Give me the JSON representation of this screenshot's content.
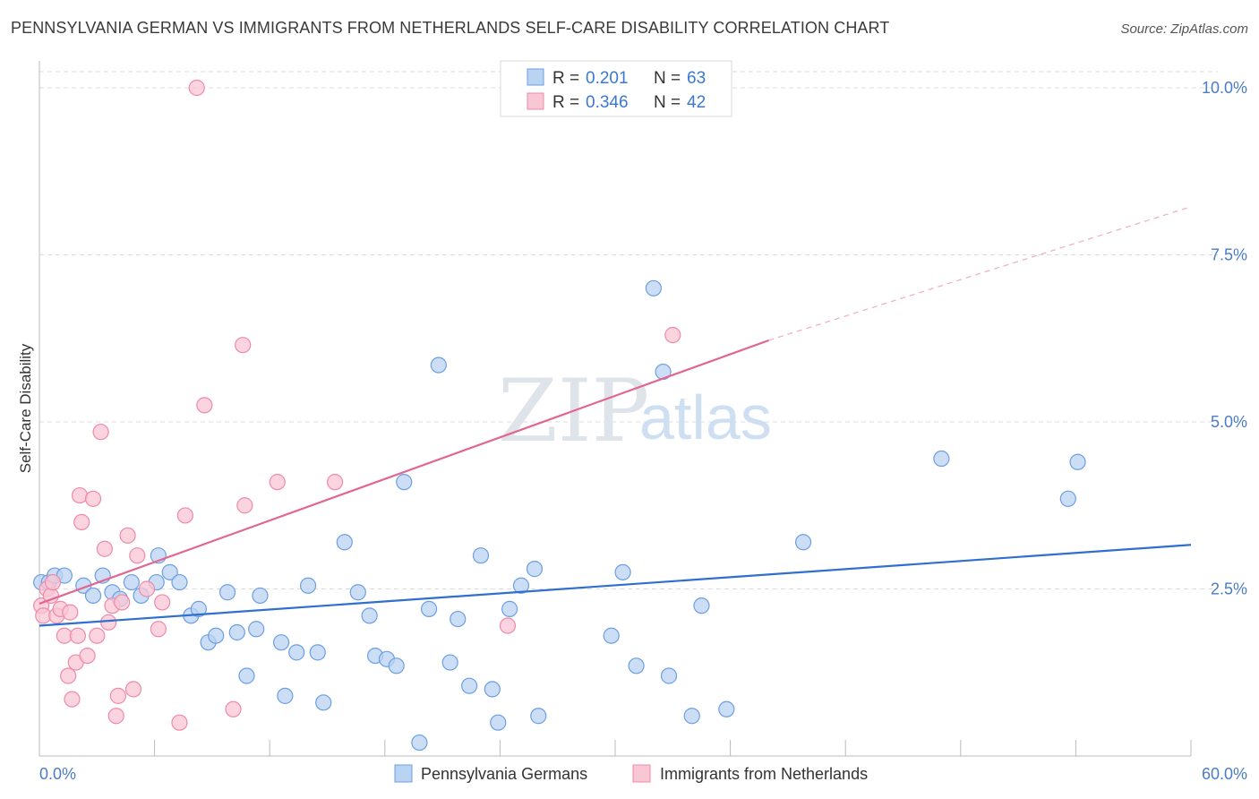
{
  "title": "PENNSYLVANIA GERMAN VS IMMIGRANTS FROM NETHERLANDS SELF-CARE DISABILITY CORRELATION CHART",
  "source": "Source: ZipAtlas.com",
  "watermark": {
    "zip": "ZIP",
    "atlas": "atlas"
  },
  "legend": {
    "r_label": "R =",
    "n_label": "N =",
    "series": [
      {
        "r": "0.201",
        "n": "63"
      },
      {
        "r": "0.346",
        "n": "42"
      }
    ]
  },
  "bottom_legend": [
    "Pennsylvania Germans",
    "Immigrants from Netherlands"
  ],
  "colors": {
    "blue_fill": "#b9d3f3",
    "blue_stroke": "#6d9fe0",
    "blue_line": "#2f6fce",
    "pink_fill": "#f9c6d4",
    "pink_stroke": "#ee8aa8",
    "pink_line": "#e26790",
    "tick_text": "#4a7cc7"
  },
  "chart_data": {
    "type": "scatter",
    "title": "PENNSYLVANIA GERMAN VS IMMIGRANTS FROM NETHERLANDS SELF-CARE DISABILITY CORRELATION CHART",
    "xlabel": "",
    "ylabel": "Self-Care Disability",
    "xlim": [
      0,
      60
    ],
    "ylim": [
      0,
      10.25
    ],
    "x_tick_labels": [
      "0.0%",
      "60.0%"
    ],
    "y_ticks": [
      2.5,
      5.0,
      7.5,
      10.0
    ],
    "y_tick_labels": [
      "2.5%",
      "5.0%",
      "7.5%",
      "10.0%"
    ],
    "grid": "horizontal dashed",
    "legend_position": "top-center",
    "series": [
      {
        "name": "Pennsylvania Germans",
        "r": 0.201,
        "n": 63,
        "trend": {
          "x": [
            0,
            60
          ],
          "y": [
            1.95,
            3.16
          ]
        },
        "points": [
          [
            0.1,
            2.6
          ],
          [
            0.5,
            2.6
          ],
          [
            0.8,
            2.7
          ],
          [
            1.3,
            2.7
          ],
          [
            2.3,
            2.55
          ],
          [
            2.8,
            2.4
          ],
          [
            3.3,
            2.7
          ],
          [
            3.8,
            2.45
          ],
          [
            4.2,
            2.35
          ],
          [
            4.8,
            2.6
          ],
          [
            5.3,
            2.4
          ],
          [
            6.1,
            2.6
          ],
          [
            6.2,
            3.0
          ],
          [
            6.8,
            2.75
          ],
          [
            7.3,
            2.6
          ],
          [
            7.9,
            2.1
          ],
          [
            8.3,
            2.2
          ],
          [
            8.8,
            1.7
          ],
          [
            9.2,
            1.8
          ],
          [
            9.8,
            2.45
          ],
          [
            10.3,
            1.85
          ],
          [
            10.8,
            1.2
          ],
          [
            11.3,
            1.9
          ],
          [
            11.5,
            2.4
          ],
          [
            12.6,
            1.7
          ],
          [
            12.8,
            0.9
          ],
          [
            13.4,
            1.55
          ],
          [
            14.0,
            2.55
          ],
          [
            14.5,
            1.55
          ],
          [
            14.8,
            0.8
          ],
          [
            15.9,
            3.2
          ],
          [
            16.6,
            2.45
          ],
          [
            17.2,
            2.1
          ],
          [
            17.5,
            1.5
          ],
          [
            18.1,
            1.45
          ],
          [
            18.6,
            1.35
          ],
          [
            19.0,
            4.1
          ],
          [
            19.8,
            0.2
          ],
          [
            20.3,
            2.2
          ],
          [
            20.8,
            5.85
          ],
          [
            21.4,
            1.4
          ],
          [
            21.8,
            2.05
          ],
          [
            22.4,
            1.05
          ],
          [
            23.0,
            3.0
          ],
          [
            23.6,
            1.0
          ],
          [
            23.9,
            0.5
          ],
          [
            24.5,
            2.2
          ],
          [
            25.1,
            2.55
          ],
          [
            25.8,
            2.8
          ],
          [
            26.0,
            0.6
          ],
          [
            29.8,
            1.8
          ],
          [
            30.4,
            2.75
          ],
          [
            31.1,
            1.35
          ],
          [
            32.0,
            7.0
          ],
          [
            32.5,
            5.75
          ],
          [
            32.8,
            1.2
          ],
          [
            34.0,
            0.6
          ],
          [
            34.5,
            2.25
          ],
          [
            35.8,
            0.7
          ],
          [
            39.8,
            3.2
          ],
          [
            47.0,
            4.45
          ],
          [
            53.6,
            3.85
          ],
          [
            54.1,
            4.4
          ]
        ]
      },
      {
        "name": "Immigrants from Netherlands",
        "r": 0.346,
        "n": 42,
        "trend": {
          "x": [
            0,
            38
          ],
          "y": [
            2.28,
            6.22
          ]
        },
        "trend_dashed": {
          "x": [
            38,
            60
          ],
          "y": [
            6.22,
            8.22
          ]
        },
        "points": [
          [
            0.1,
            2.25
          ],
          [
            0.2,
            2.1
          ],
          [
            0.4,
            2.5
          ],
          [
            0.6,
            2.4
          ],
          [
            0.7,
            2.6
          ],
          [
            0.9,
            2.1
          ],
          [
            1.1,
            2.2
          ],
          [
            1.3,
            1.8
          ],
          [
            1.5,
            1.2
          ],
          [
            1.7,
            0.85
          ],
          [
            1.9,
            1.4
          ],
          [
            2.0,
            1.8
          ],
          [
            2.1,
            3.9
          ],
          [
            2.2,
            3.5
          ],
          [
            2.5,
            1.5
          ],
          [
            2.8,
            3.85
          ],
          [
            3.0,
            1.8
          ],
          [
            3.2,
            4.85
          ],
          [
            3.4,
            3.1
          ],
          [
            3.6,
            2.0
          ],
          [
            3.8,
            2.25
          ],
          [
            4.0,
            0.6
          ],
          [
            4.1,
            0.9
          ],
          [
            4.3,
            2.3
          ],
          [
            4.6,
            3.3
          ],
          [
            4.9,
            1.0
          ],
          [
            5.1,
            3.0
          ],
          [
            5.6,
            2.5
          ],
          [
            6.2,
            1.9
          ],
          [
            6.4,
            2.3
          ],
          [
            7.3,
            0.5
          ],
          [
            7.6,
            3.6
          ],
          [
            8.2,
            10.0
          ],
          [
            8.6,
            5.25
          ],
          [
            10.1,
            0.7
          ],
          [
            10.6,
            6.15
          ],
          [
            10.7,
            3.75
          ],
          [
            12.4,
            4.1
          ],
          [
            15.4,
            4.1
          ],
          [
            24.4,
            1.95
          ],
          [
            33.0,
            6.3
          ],
          [
            1.6,
            2.15
          ]
        ]
      }
    ]
  }
}
